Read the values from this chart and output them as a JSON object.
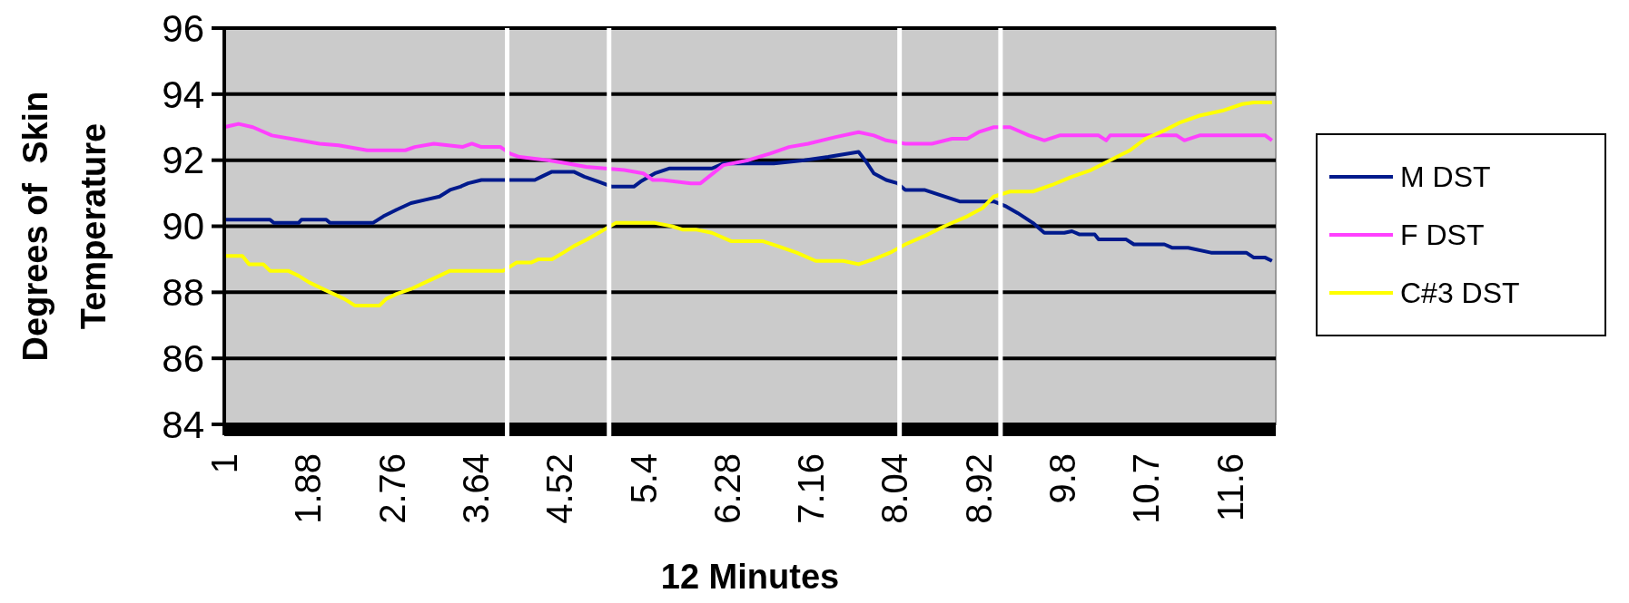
{
  "chart_data": {
    "type": "line",
    "xlabel": "12 Minutes",
    "ylabel": "Degrees of  Skin Temperature",
    "xlim": [
      1,
      12.04
    ],
    "xticks": [
      1,
      1.88,
      2.76,
      3.64,
      4.52,
      5.4,
      6.28,
      7.16,
      8.04,
      8.92,
      9.8,
      {
        "value": 10.68,
        "label": "10.7"
      },
      {
        "value": 11.56,
        "label": "11.6"
      }
    ],
    "ylim": [
      84,
      96
    ],
    "yticks": [
      84,
      86,
      88,
      90,
      92,
      94,
      96
    ],
    "grid": "y",
    "legend": "right",
    "ref_lines": [
      {
        "axis": "x",
        "value": 3.97,
        "label": null,
        "color": "#ffffff"
      },
      {
        "axis": "x",
        "value": 5.04,
        "label": null,
        "color": "#ffffff"
      },
      {
        "axis": "x",
        "value": 8.09,
        "label": null,
        "color": "#ffffff"
      },
      {
        "axis": "x",
        "value": 9.15,
        "label": null,
        "color": "#ffffff"
      }
    ],
    "series": [
      {
        "name": "M DST",
        "color": "#001a8c",
        "x": [
          1,
          1.48,
          1.52,
          1.78,
          1.81,
          2.07,
          2.11,
          2.56,
          2.67,
          2.81,
          2.96,
          3.11,
          3.26,
          3.37,
          3.48,
          3.56,
          3.7,
          4.26,
          4.33,
          4.44,
          4.67,
          4.78,
          4.93,
          5.07,
          5.3,
          5.37,
          5.52,
          5.67,
          5.91,
          6.12,
          6.24,
          6.77,
          7.09,
          7.34,
          7.66,
          7.74,
          7.82,
          7.95,
          8.07,
          8.15,
          8.35,
          8.56,
          8.72,
          9.08,
          9.21,
          9.33,
          9.49,
          9.61,
          9.82,
          9.9,
          9.98,
          10.14,
          10.18,
          10.47,
          10.55,
          10.87,
          10.95,
          11.12,
          11.36,
          11.73,
          11.81,
          11.93,
          12.0
        ],
        "values": [
          90.2,
          90.2,
          90.1,
          90.1,
          90.2,
          90.2,
          90.1,
          90.1,
          90.3,
          90.5,
          90.7,
          90.8,
          90.9,
          91.1,
          91.2,
          91.3,
          91.4,
          91.4,
          91.5,
          91.65,
          91.65,
          91.5,
          91.35,
          91.2,
          91.2,
          91.35,
          91.6,
          91.75,
          91.75,
          91.75,
          91.9,
          91.9,
          92.0,
          92.1,
          92.25,
          91.95,
          91.6,
          91.4,
          91.3,
          91.1,
          91.1,
          90.9,
          90.75,
          90.75,
          90.6,
          90.4,
          90.1,
          89.8,
          89.8,
          89.85,
          89.75,
          89.75,
          89.6,
          89.6,
          89.45,
          89.45,
          89.35,
          89.35,
          89.2,
          89.2,
          89.05,
          89.05,
          88.95
        ]
      },
      {
        "name": "F DST",
        "color": "#ff40ff",
        "x": [
          1,
          1.15,
          1.3,
          1.5,
          1.7,
          2.0,
          2.2,
          2.5,
          2.9,
          3.0,
          3.2,
          3.5,
          3.6,
          3.7,
          3.9,
          4.0,
          4.1,
          4.4,
          4.6,
          4.8,
          5.0,
          5.2,
          5.4,
          5.5,
          5.6,
          5.9,
          6.0,
          6.24,
          6.5,
          6.73,
          6.93,
          7.13,
          7.42,
          7.66,
          7.82,
          7.95,
          8.15,
          8.43,
          8.64,
          8.8,
          8.92,
          9.08,
          9.25,
          9.45,
          9.61,
          9.77,
          10.18,
          10.26,
          10.3,
          11.0,
          11.08,
          11.24,
          11.93,
          12.0
        ],
        "values": [
          93.0,
          93.1,
          93.0,
          92.75,
          92.65,
          92.5,
          92.45,
          92.3,
          92.3,
          92.4,
          92.5,
          92.4,
          92.5,
          92.4,
          92.4,
          92.2,
          92.1,
          92.0,
          91.9,
          91.8,
          91.75,
          91.7,
          91.6,
          91.4,
          91.4,
          91.3,
          91.3,
          91.85,
          92.0,
          92.2,
          92.4,
          92.5,
          92.7,
          92.85,
          92.75,
          92.6,
          92.5,
          92.5,
          92.65,
          92.65,
          92.85,
          93.0,
          93.0,
          92.75,
          92.6,
          92.75,
          92.75,
          92.6,
          92.75,
          92.75,
          92.6,
          92.75,
          92.75,
          92.6
        ]
      },
      {
        "name": "C#3 DST",
        "color": "#ffff00",
        "x": [
          1,
          1.19,
          1.26,
          1.41,
          1.48,
          1.67,
          1.78,
          1.89,
          2.0,
          2.11,
          2.26,
          2.37,
          2.63,
          2.7,
          2.81,
          2.96,
          3.11,
          3.26,
          3.37,
          3.93,
          4.07,
          4.22,
          4.3,
          4.44,
          4.56,
          4.67,
          4.81,
          4.96,
          5.11,
          5.52,
          5.7,
          5.81,
          5.95,
          6.12,
          6.32,
          6.65,
          6.81,
          7.01,
          7.21,
          7.5,
          7.66,
          7.82,
          7.99,
          8.15,
          8.35,
          8.56,
          8.8,
          8.96,
          9.08,
          9.25,
          9.49,
          9.69,
          9.9,
          10.1,
          10.3,
          10.51,
          10.67,
          10.87,
          11.04,
          11.24,
          11.48,
          11.69,
          11.81,
          12.0
        ],
        "values": [
          89.1,
          89.1,
          88.85,
          88.85,
          88.65,
          88.65,
          88.5,
          88.3,
          88.15,
          88.0,
          87.8,
          87.6,
          87.6,
          87.8,
          87.95,
          88.1,
          88.3,
          88.5,
          88.65,
          88.65,
          88.9,
          88.9,
          89.0,
          89.0,
          89.2,
          89.4,
          89.6,
          89.85,
          90.1,
          90.1,
          90.0,
          89.9,
          89.9,
          89.8,
          89.55,
          89.55,
          89.4,
          89.2,
          88.95,
          88.95,
          88.85,
          89.0,
          89.2,
          89.45,
          89.7,
          90.0,
          90.3,
          90.55,
          90.9,
          91.05,
          91.05,
          91.25,
          91.5,
          91.7,
          92.0,
          92.3,
          92.65,
          92.9,
          93.15,
          93.35,
          93.5,
          93.7,
          93.75,
          93.75
        ]
      }
    ]
  }
}
